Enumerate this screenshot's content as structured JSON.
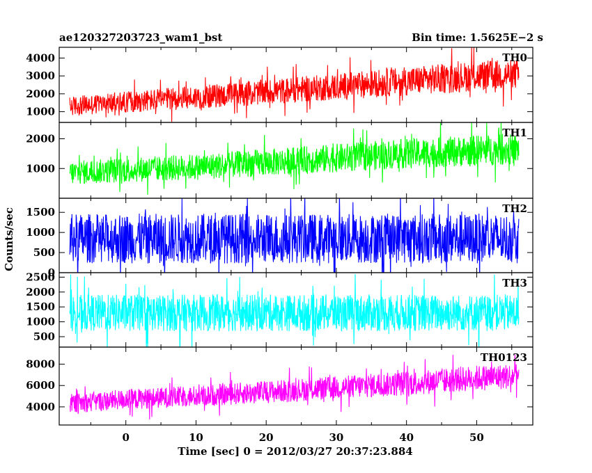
{
  "header": {
    "left_title": "ae120327203723_wam1_bst",
    "right_title": "Bin time: 1.5625E−2 s"
  },
  "axes": {
    "xlabel": "Time [sec] 0 = 2012/03/27 20:37:23.884",
    "ylabel": "Counts/sec"
  },
  "chart_data": {
    "type": "line",
    "title": "ae120327203723_wam1_bst",
    "subtitle": "Bin time: 1.5625E−2 s",
    "xlabel": "Time [sec] 0 = 2012/03/27 20:37:23.884",
    "ylabel": "Counts/sec",
    "xlim": [
      -9.5,
      58
    ],
    "data_x_range": [
      -8,
      56
    ],
    "x_ticks": [
      0,
      10,
      20,
      30,
      40,
      50
    ],
    "grid": false,
    "panels": [
      {
        "name": "TH0",
        "color": "#ff0000",
        "ylim": [
          400,
          4600
        ],
        "y_ticks": [
          1000,
          2000,
          3000,
          4000
        ],
        "x": [
          -8,
          0,
          10,
          20,
          30,
          40,
          50,
          56
        ],
        "mean": [
          1300,
          1550,
          1800,
          2100,
          2400,
          2700,
          3000,
          3100
        ],
        "spread": [
          550,
          600,
          650,
          700,
          750,
          800,
          850,
          850
        ]
      },
      {
        "name": "TH1",
        "color": "#00ff00",
        "ylim": [
          0,
          2550
        ],
        "y_ticks": [
          1000,
          2000
        ],
        "x": [
          -8,
          0,
          10,
          20,
          30,
          40,
          50,
          56
        ],
        "mean": [
          850,
          950,
          1050,
          1200,
          1350,
          1500,
          1600,
          1650
        ],
        "spread": [
          400,
          420,
          440,
          460,
          480,
          500,
          520,
          520
        ]
      },
      {
        "name": "TH2",
        "color": "#0000ff",
        "ylim": [
          0,
          1850
        ],
        "y_ticks": [
          0,
          500,
          1000,
          1500
        ],
        "x": [
          -8,
          56
        ],
        "mean": [
          850,
          850
        ],
        "spread": [
          620,
          620
        ]
      },
      {
        "name": "TH3",
        "color": "#00ffff",
        "ylim": [
          150,
          2650
        ],
        "y_ticks": [
          500,
          1000,
          1500,
          2000,
          2500
        ],
        "x": [
          -8,
          56
        ],
        "mean": [
          1300,
          1300
        ],
        "spread": [
          620,
          620
        ]
      },
      {
        "name": "TH0123",
        "color": "#ff00ff",
        "ylim": [
          2300,
          9600
        ],
        "y_ticks": [
          4000,
          6000,
          8000
        ],
        "x": [
          -8,
          0,
          10,
          20,
          30,
          40,
          50,
          56
        ],
        "mean": [
          4300,
          4700,
          5000,
          5400,
          5800,
          6200,
          6700,
          6900
        ],
        "spread": [
          900,
          950,
          1000,
          1050,
          1100,
          1150,
          1200,
          1200
        ]
      }
    ]
  }
}
